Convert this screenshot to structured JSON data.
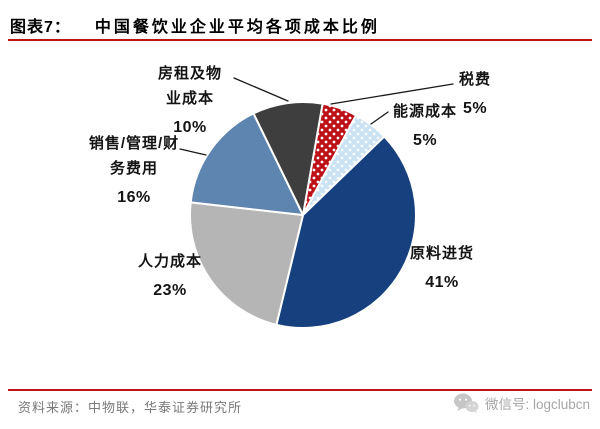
{
  "header": {
    "figure_label": "图表7：",
    "title": "中国餐饮业企业平均各项成本比例"
  },
  "chart_data": {
    "type": "pie",
    "title": "中国餐饮业企业平均各项成本比例",
    "unit": "%",
    "start_angle_deg": 10,
    "direction": "clockwise",
    "labels_position": "outside",
    "legend": "none",
    "slices": [
      {
        "key": "taxes",
        "name": "税费",
        "display_label": "税费",
        "value": 5,
        "pct_label": "5%",
        "color": "#BC1117",
        "pattern": "white-dots"
      },
      {
        "key": "energy",
        "name": "能源成本",
        "display_label": "能源成本",
        "value": 5,
        "pct_label": "5%",
        "color": "#C9E2F4",
        "pattern": "white-dots"
      },
      {
        "key": "raw-materials",
        "name": "原料进货",
        "display_label": "原料进货",
        "value": 41,
        "pct_label": "41%",
        "color": "#17417E",
        "pattern": null
      },
      {
        "key": "labor",
        "name": "人力成本",
        "display_label": "人力成本",
        "value": 23,
        "pct_label": "23%",
        "color": "#B5B5B5",
        "pattern": null
      },
      {
        "key": "sales-admin-finance",
        "name": "销售/管理/财务费用",
        "display_label": "销售/管理/财\n务费用",
        "value": 16,
        "pct_label": "16%",
        "color": "#5E84B0",
        "pattern": null
      },
      {
        "key": "rent-property",
        "name": "房租及物业成本",
        "display_label": "房租及物\n业成本",
        "value": 10,
        "pct_label": "10%",
        "color": "#3E3E3E",
        "pattern": null
      }
    ]
  },
  "footer": {
    "source": "资料来源：中物联，华泰证券研究所",
    "wechat": "微信号: logclubcn"
  },
  "colors": {
    "accent_red": "#C01414",
    "text_black": "#000000",
    "source_gray": "#7A7A7A",
    "wechat_gray": "#A6A6A6"
  }
}
